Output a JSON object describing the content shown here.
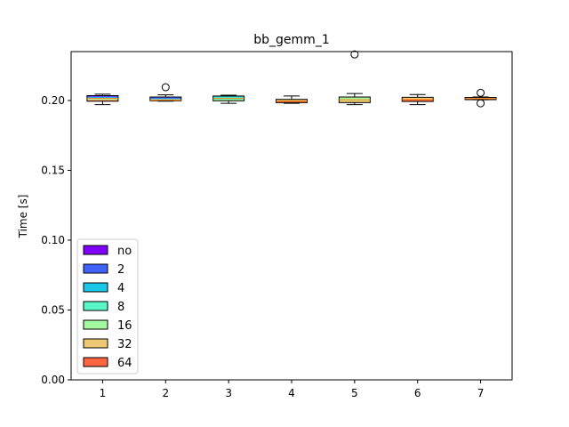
{
  "chart_data": {
    "type": "boxplot",
    "title": "bb_gemm_1",
    "xlabel": "",
    "ylabel": "Time [s]",
    "ylim": [
      0.0,
      0.235
    ],
    "xlim": [
      0.5,
      7.5
    ],
    "yticks": [
      0.0,
      0.05,
      0.1,
      0.15,
      0.2
    ],
    "ytick_labels": [
      "0.00",
      "0.05",
      "0.10",
      "0.15",
      "0.20"
    ],
    "categories": [
      "1",
      "2",
      "3",
      "4",
      "5",
      "6",
      "7"
    ],
    "grid": false,
    "legend_position": "lower-left",
    "legend": [
      {
        "label": "no",
        "color": "#8000ff"
      },
      {
        "label": "2",
        "color": "#4062fa"
      },
      {
        "label": "4",
        "color": "#1ac7e6"
      },
      {
        "label": "8",
        "color": "#5af8c8"
      },
      {
        "label": "16",
        "color": "#a4f89f"
      },
      {
        "label": "32",
        "color": "#eec874"
      },
      {
        "label": "64",
        "color": "#ff6640"
      }
    ],
    "boxes": [
      {
        "category": "1",
        "whisker_low": 0.197,
        "q1": 0.1995,
        "median": 0.2015,
        "q3": 0.2035,
        "whisker_high": 0.2045,
        "fliers": [],
        "colors": [
          "#8000ff",
          "#4062fa",
          "#1ac7e6",
          "#5af8c8",
          "#a4f89f",
          "#eec874",
          "#ff6640"
        ]
      },
      {
        "category": "2",
        "whisker_low": 0.1995,
        "q1": 0.1998,
        "median": 0.2002,
        "q3": 0.2025,
        "whisker_high": 0.204,
        "fliers": [
          0.2095
        ],
        "colors": [
          "#4062fa",
          "#4062fa",
          "#1ac7e6",
          "#eec874",
          "#ff6640"
        ]
      },
      {
        "category": "3",
        "whisker_low": 0.198,
        "q1": 0.1998,
        "median": 0.2015,
        "q3": 0.2032,
        "whisker_high": 0.2038,
        "fliers": [],
        "colors": [
          "#1ac7e6",
          "#5af8c8",
          "#5af8c8",
          "#a4f89f"
        ]
      },
      {
        "category": "4",
        "whisker_low": 0.198,
        "q1": 0.1985,
        "median": 0.1995,
        "q3": 0.2008,
        "whisker_high": 0.2032,
        "fliers": [],
        "colors": [
          "#eec874",
          "#ff6640"
        ]
      },
      {
        "category": "5",
        "whisker_low": 0.197,
        "q1": 0.1985,
        "median": 0.2005,
        "q3": 0.2025,
        "whisker_high": 0.205,
        "fliers": [
          0.233
        ],
        "colors": [
          "#a4f89f",
          "#a4f89f",
          "#eec874"
        ]
      },
      {
        "category": "6",
        "whisker_low": 0.197,
        "q1": 0.1993,
        "median": 0.2007,
        "q3": 0.2023,
        "whisker_high": 0.2043,
        "fliers": [],
        "colors": [
          "#eec874",
          "#ff6640"
        ]
      },
      {
        "category": "7",
        "whisker_low": 0.2005,
        "q1": 0.2006,
        "median": 0.2013,
        "q3": 0.2022,
        "whisker_high": 0.2025,
        "fliers": [
          0.198,
          0.2055
        ],
        "colors": [
          "#eec874",
          "#ff6640"
        ]
      }
    ]
  }
}
